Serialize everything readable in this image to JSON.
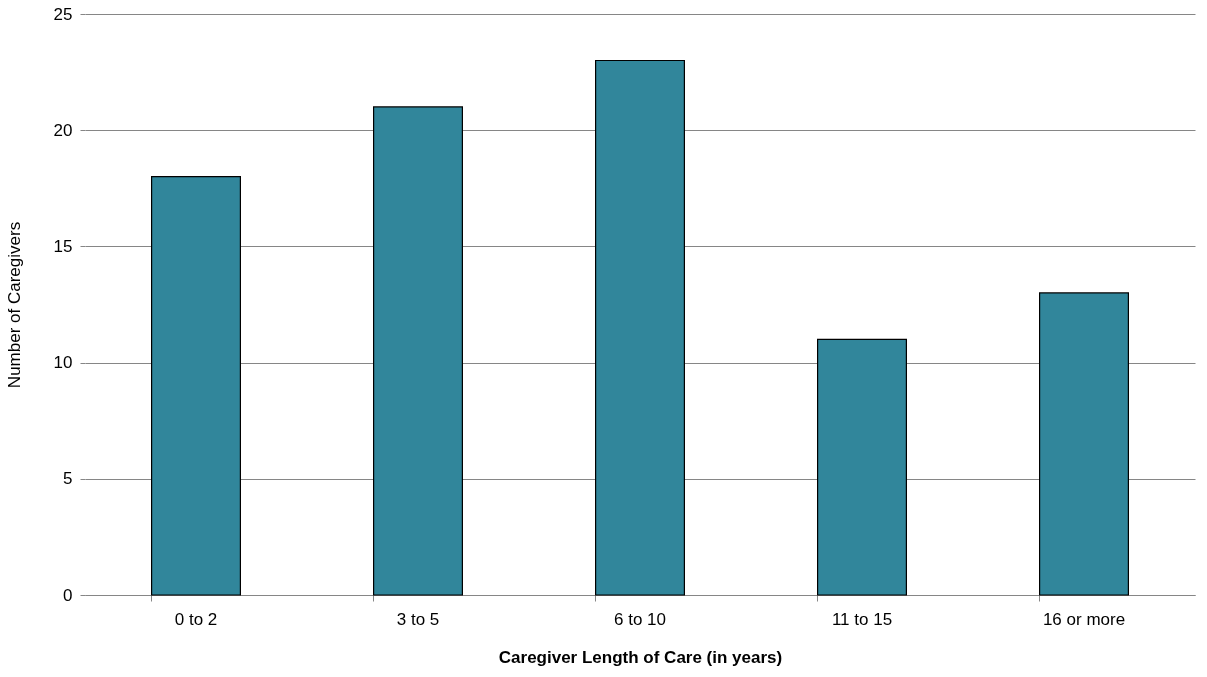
{
  "chart_data": {
    "type": "bar",
    "xlabel": "Caregiver Length of Care (in years)",
    "ylabel": "Number of Caregivers",
    "categories": [
      "0 to 2",
      "3 to 5",
      "6 to 10",
      "11 to 15",
      "16 or more"
    ],
    "values": [
      18,
      21,
      23,
      11,
      13
    ],
    "color": "#31869b",
    "ylim": [
      0,
      25
    ],
    "yticks": [
      0,
      5,
      10,
      15,
      20,
      25
    ],
    "grid": "y"
  }
}
